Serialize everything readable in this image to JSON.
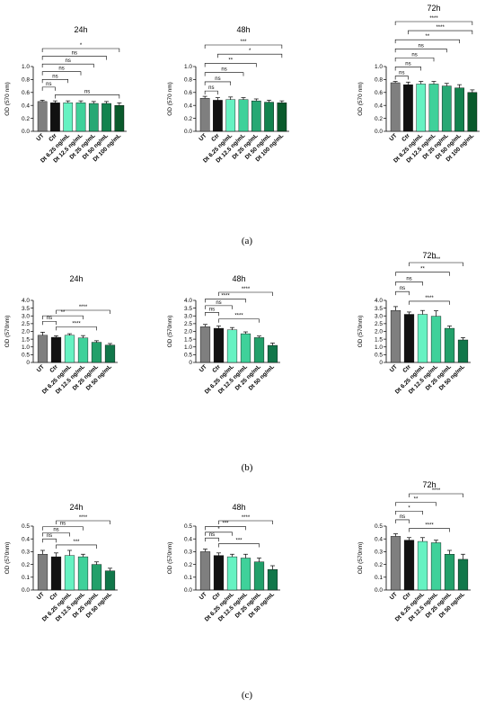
{
  "panel_labels": [
    "(a)",
    "(b)",
    "(c)"
  ],
  "chart_data": [
    {
      "type": "bar",
      "panel": "(a)",
      "title": "24h",
      "ylabel": "OD (570 nm)",
      "xlabel": "",
      "ylim": [
        0,
        1.0
      ],
      "yticks": [
        0.0,
        0.2,
        0.4,
        0.6,
        0.8,
        1.0
      ],
      "ytick_labels": [
        "0.0",
        "0.2",
        "0.4",
        "0.6",
        "0.8",
        "1.0"
      ],
      "categories": [
        "UT",
        "Ctr",
        "Dt 6.25 ng/mL",
        "Dt 12.5 ng/mL",
        "Dt 25 ng/mL",
        "Dt 50 ng/mL",
        "Dt 100 ng/mL"
      ],
      "values": [
        0.46,
        0.44,
        0.44,
        0.44,
        0.43,
        0.43,
        0.4
      ],
      "errors": [
        0.02,
        0.03,
        0.03,
        0.03,
        0.03,
        0.03,
        0.04
      ],
      "colors": [
        "#7f7f7f",
        "#111111",
        "#66f2c2",
        "#3fd19a",
        "#27a874",
        "#13834f",
        "#0a5a2c"
      ],
      "significance": [
        {
          "from": 0,
          "to": 6,
          "label": "*"
        },
        {
          "from": 0,
          "to": 5,
          "label": "ns"
        },
        {
          "from": 0,
          "to": 4,
          "label": "ns"
        },
        {
          "from": 0,
          "to": 3,
          "label": "ns"
        },
        {
          "from": 0,
          "to": 2,
          "label": "ns"
        },
        {
          "from": 0,
          "to": 1,
          "label": "ns"
        },
        {
          "from": 1,
          "to": 6,
          "label": "ns"
        }
      ]
    },
    {
      "type": "bar",
      "panel": "(a)",
      "title": "48h",
      "ylabel": "OD (570 nm)",
      "xlabel": "",
      "ylim": [
        0,
        1.0
      ],
      "yticks": [
        0.0,
        0.2,
        0.4,
        0.6,
        0.8,
        1.0
      ],
      "ytick_labels": [
        "0.0",
        "0.2",
        "0.4",
        "0.6",
        "0.8",
        "1.0"
      ],
      "categories": [
        "UT",
        "Ctr",
        "Dt 6.25 ng/mL",
        "Dt 12.5 ng/mL",
        "Dt 25 ng/mL",
        "Dt 50 ng/mL",
        "Dt 100 ng/mL"
      ],
      "values": [
        0.51,
        0.48,
        0.49,
        0.49,
        0.47,
        0.45,
        0.44
      ],
      "errors": [
        0.03,
        0.04,
        0.04,
        0.03,
        0.03,
        0.03,
        0.03
      ],
      "colors": [
        "#7f7f7f",
        "#111111",
        "#66f2c2",
        "#3fd19a",
        "#27a874",
        "#13834f",
        "#0a5a2c"
      ],
      "significance": [
        {
          "from": 0,
          "to": 6,
          "label": "***"
        },
        {
          "from": 1,
          "to": 6,
          "label": "*"
        },
        {
          "from": 0,
          "to": 4,
          "label": "**"
        },
        {
          "from": 0,
          "to": 3,
          "label": "ns"
        },
        {
          "from": 0,
          "to": 2,
          "label": "ns"
        },
        {
          "from": 0,
          "to": 1,
          "label": "ns"
        }
      ]
    },
    {
      "type": "bar",
      "panel": "(a)",
      "title": "72h",
      "ylabel": "OD (570 nm)",
      "xlabel": "",
      "ylim": [
        0,
        1.0
      ],
      "yticks": [
        0.0,
        0.2,
        0.4,
        0.6,
        0.8,
        1.0
      ],
      "ytick_labels": [
        "0.0",
        "0.2",
        "0.4",
        "0.6",
        "0.8",
        "1.0"
      ],
      "categories": [
        "UT",
        "Ctr",
        "Dt 6.25 ng/mL",
        "Dt 12.5 ng/mL",
        "Dt 25 ng/mL",
        "Dt 50 ng/mL",
        "Dt 100 ng/mL"
      ],
      "values": [
        0.75,
        0.72,
        0.73,
        0.73,
        0.7,
        0.67,
        0.6
      ],
      "errors": [
        0.02,
        0.04,
        0.04,
        0.04,
        0.04,
        0.05,
        0.04
      ],
      "colors": [
        "#7f7f7f",
        "#111111",
        "#66f2c2",
        "#3fd19a",
        "#27a874",
        "#13834f",
        "#0a5a2c"
      ],
      "significance": [
        {
          "from": 0,
          "to": 6,
          "label": "****"
        },
        {
          "from": 1,
          "to": 6,
          "label": "****"
        },
        {
          "from": 0,
          "to": 5,
          "label": "**"
        },
        {
          "from": 0,
          "to": 4,
          "label": "ns"
        },
        {
          "from": 0,
          "to": 3,
          "label": "ns"
        },
        {
          "from": 0,
          "to": 2,
          "label": "ns"
        },
        {
          "from": 0,
          "to": 1,
          "label": "ns"
        }
      ]
    },
    {
      "type": "bar",
      "panel": "(b)",
      "title": "24h",
      "ylabel": "OD (570nm)",
      "xlabel": "",
      "ylim": [
        0,
        4.0
      ],
      "yticks": [
        0,
        0.5,
        1.0,
        1.5,
        2.0,
        2.5,
        3.0,
        3.5,
        4.0
      ],
      "ytick_labels": [
        "0",
        "0.5",
        "1.0",
        "1.5",
        "2.0",
        "2.5",
        "3.0",
        "3.5",
        "4.0"
      ],
      "categories": [
        "UT",
        "Ctr",
        "Dt 6.25 ng/mL",
        "Dt 12.5 ng/mL",
        "Dt 25 ng/mL",
        "Dt 50 ng/mL"
      ],
      "values": [
        1.75,
        1.62,
        1.75,
        1.58,
        1.3,
        1.12
      ],
      "errors": [
        0.2,
        0.1,
        0.1,
        0.15,
        0.1,
        0.1
      ],
      "colors": [
        "#7f7f7f",
        "#111111",
        "#66f2c2",
        "#3fd19a",
        "#22a06a",
        "#11774a"
      ],
      "significance": [
        {
          "from": 1,
          "to": 5,
          "label": "****"
        },
        {
          "from": 0,
          "to": 3,
          "label": "**"
        },
        {
          "from": 0,
          "to": 1,
          "label": "ns"
        },
        {
          "from": 1,
          "to": 4,
          "label": "****"
        }
      ]
    },
    {
      "type": "bar",
      "panel": "(b)",
      "title": "48h",
      "ylabel": "OD (570nm)",
      "xlabel": "",
      "ylim": [
        0,
        4.0
      ],
      "yticks": [
        0,
        0.5,
        1.0,
        1.5,
        2.0,
        2.5,
        3.0,
        3.5,
        4.0
      ],
      "ytick_labels": [
        "0",
        "0.5",
        "1.0",
        "1.5",
        "2.0",
        "2.5",
        "3.0",
        "3.5",
        "4.0"
      ],
      "categories": [
        "UT",
        "Ctr",
        "Dt 6.25 ng/mL",
        "Dt 12.5 ng/mL",
        "Dt 25 ng/mL",
        "Dt 50 ng/mL"
      ],
      "values": [
        2.3,
        2.2,
        2.1,
        1.85,
        1.6,
        1.1
      ],
      "errors": [
        0.15,
        0.15,
        0.15,
        0.12,
        0.1,
        0.15
      ],
      "colors": [
        "#7f7f7f",
        "#111111",
        "#66f2c2",
        "#3fd19a",
        "#22a06a",
        "#11774a"
      ],
      "significance": [
        {
          "from": 1,
          "to": 5,
          "label": "****"
        },
        {
          "from": 0,
          "to": 3,
          "label": "****"
        },
        {
          "from": 0,
          "to": 2,
          "label": "ns"
        },
        {
          "from": 0,
          "to": 1,
          "label": "ns"
        },
        {
          "from": 1,
          "to": 4,
          "label": "****"
        }
      ]
    },
    {
      "type": "bar",
      "panel": "(b)",
      "title": "72h",
      "ylabel": "OD (570nm)",
      "xlabel": "",
      "ylim": [
        0,
        4.0
      ],
      "yticks": [
        0,
        0.5,
        1.0,
        1.5,
        2.0,
        2.5,
        3.0,
        3.5,
        4.0
      ],
      "ytick_labels": [
        "0",
        "0.5",
        "1.0",
        "1.5",
        "2.0",
        "2.5",
        "3.0",
        "3.5",
        "4.0"
      ],
      "categories": [
        "UT",
        "Ctr",
        "Dt 6.25 ng/mL",
        "Dt 12.5 ng/mL",
        "Dt 25 ng/mL",
        "Dt 50 ng/mL"
      ],
      "values": [
        3.35,
        3.1,
        3.1,
        2.98,
        2.2,
        1.45
      ],
      "errors": [
        0.25,
        0.15,
        0.25,
        0.35,
        0.15,
        0.15
      ],
      "colors": [
        "#7f7f7f",
        "#111111",
        "#66f2c2",
        "#3fd19a",
        "#22a06a",
        "#11774a"
      ],
      "significance": [
        {
          "from": 1,
          "to": 5,
          "label": "****"
        },
        {
          "from": 0,
          "to": 4,
          "label": "**"
        },
        {
          "from": 0,
          "to": 2,
          "label": "ns"
        },
        {
          "from": 0,
          "to": 1,
          "label": "ns"
        },
        {
          "from": 1,
          "to": 4,
          "label": "****"
        }
      ]
    },
    {
      "type": "bar",
      "panel": "(c)",
      "title": "24h",
      "ylabel": "OD (570nm)",
      "xlabel": "",
      "ylim": [
        0,
        0.5
      ],
      "yticks": [
        0.0,
        0.1,
        0.2,
        0.3,
        0.4,
        0.5
      ],
      "ytick_labels": [
        "0.0",
        "0.1",
        "0.2",
        "0.3",
        "0.4",
        "0.5"
      ],
      "categories": [
        "UT",
        "Ctr",
        "Dt 6.25 ng/mL",
        "Dt 12.5 ng/mL",
        "Dt 25 ng/mL",
        "Dt 50 ng/mL"
      ],
      "values": [
        0.28,
        0.26,
        0.27,
        0.26,
        0.2,
        0.15
      ],
      "errors": [
        0.03,
        0.03,
        0.04,
        0.02,
        0.02,
        0.02
      ],
      "colors": [
        "#7f7f7f",
        "#111111",
        "#66f2c2",
        "#3fd19a",
        "#22a06a",
        "#11774a"
      ],
      "significance": [
        {
          "from": 1,
          "to": 5,
          "label": "****"
        },
        {
          "from": 0,
          "to": 3,
          "label": "ns"
        },
        {
          "from": 0,
          "to": 2,
          "label": "ns"
        },
        {
          "from": 0,
          "to": 1,
          "label": "ns"
        },
        {
          "from": 1,
          "to": 4,
          "label": "***"
        }
      ]
    },
    {
      "type": "bar",
      "panel": "(c)",
      "title": "48h",
      "ylabel": "OD (570nm)",
      "xlabel": "",
      "ylim": [
        0,
        0.5
      ],
      "yticks": [
        0.0,
        0.1,
        0.2,
        0.3,
        0.4,
        0.5
      ],
      "ytick_labels": [
        "0.0",
        "0.1",
        "0.2",
        "0.3",
        "0.4",
        "0.5"
      ],
      "categories": [
        "UT",
        "Ctr",
        "Dt 6.25 ng/mL",
        "Dt 12.5 ng/mL",
        "Dt 25 ng/mL",
        "Dt 50 ng/mL"
      ],
      "values": [
        0.3,
        0.27,
        0.26,
        0.25,
        0.22,
        0.16
      ],
      "errors": [
        0.02,
        0.02,
        0.02,
        0.03,
        0.03,
        0.03
      ],
      "colors": [
        "#7f7f7f",
        "#111111",
        "#66f2c2",
        "#3fd19a",
        "#22a06a",
        "#11774a"
      ],
      "significance": [
        {
          "from": 1,
          "to": 5,
          "label": "****"
        },
        {
          "from": 0,
          "to": 3,
          "label": "***"
        },
        {
          "from": 0,
          "to": 2,
          "label": "*"
        },
        {
          "from": 0,
          "to": 1,
          "label": "ns"
        },
        {
          "from": 1,
          "to": 4,
          "label": "***"
        }
      ]
    },
    {
      "type": "bar",
      "panel": "(c)",
      "title": "72h",
      "ylabel": "OD (570nm)",
      "xlabel": "",
      "ylim": [
        0,
        0.5
      ],
      "yticks": [
        0.0,
        0.1,
        0.2,
        0.3,
        0.4,
        0.5
      ],
      "ytick_labels": [
        "0.0",
        "0.1",
        "0.2",
        "0.3",
        "0.4",
        "0.5"
      ],
      "categories": [
        "UT",
        "Ctr",
        "Dt 6.25 ng/mL",
        "Dt 12.5 ng/mL",
        "Dt 25 ng/mL",
        "Dt 50 ng/mL"
      ],
      "values": [
        0.42,
        0.39,
        0.38,
        0.37,
        0.28,
        0.24
      ],
      "errors": [
        0.02,
        0.02,
        0.03,
        0.02,
        0.03,
        0.04
      ],
      "colors": [
        "#7f7f7f",
        "#111111",
        "#66f2c2",
        "#3fd19a",
        "#22a06a",
        "#11774a"
      ],
      "significance": [
        {
          "from": 1,
          "to": 5,
          "label": "****"
        },
        {
          "from": 0,
          "to": 3,
          "label": "**"
        },
        {
          "from": 0,
          "to": 2,
          "label": "*"
        },
        {
          "from": 0,
          "to": 1,
          "label": "ns"
        },
        {
          "from": 1,
          "to": 4,
          "label": "****"
        }
      ]
    }
  ]
}
